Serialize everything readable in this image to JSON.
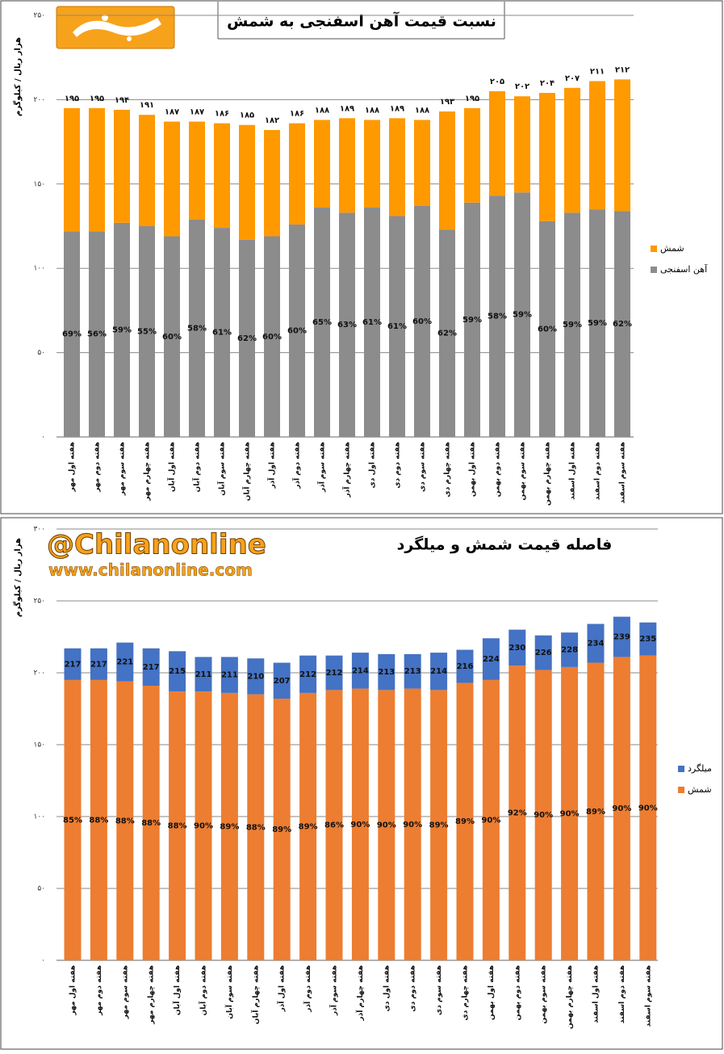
{
  "watermark": {
    "handle": "@Chilanonline",
    "url": "www.chilanonline.com"
  },
  "chart_data": [
    {
      "type": "bar",
      "stacked": true,
      "title": "نسبت قیمت آهن اسفنجی به شمش",
      "y_label": "هزار ریال / کیلوگرم",
      "categories": [
        "هفته اول مهر",
        "هفته دوم مهر",
        "هفته سوم مهر",
        "هفته چهارم مهر",
        "هفته اول آبان",
        "هفته دوم آبان",
        "هفته سوم آبان",
        "هفته چهارم آبان",
        "هفته اول آذر",
        "هفته دوم آذر",
        "هفته سوم آذر",
        "هفته چهارم آذر",
        "هفته اول دی",
        "هفته دوم دی",
        "هفته سوم دی",
        "هفته چهارم دی",
        "هفته اول بهمن",
        "هفته دوم بهمن",
        "هفته سوم بهمن",
        "هفته چهارم بهمن",
        "هفته اول اسفند",
        "هفته دوم اسفند",
        "هفته سوم اسفند"
      ],
      "series": [
        {
          "name": "آهن اسفنجی",
          "color": "#8c8c8c",
          "values": [
            122,
            122,
            127,
            125,
            119,
            129,
            124,
            117,
            119,
            126,
            136,
            133,
            136,
            131,
            137,
            123,
            139,
            143,
            145,
            128,
            133,
            135,
            134
          ]
        },
        {
          "name": "شمش",
          "color": "#ff9900",
          "values": [
            73,
            73,
            67,
            66,
            68,
            58,
            62,
            68,
            63,
            60,
            52,
            56,
            52,
            58,
            51,
            70,
            56,
            62,
            57,
            76,
            74,
            76,
            78
          ]
        }
      ],
      "totals": [
        195,
        195,
        194,
        191,
        187,
        187,
        186,
        185,
        182,
        186,
        188,
        189,
        188,
        189,
        188,
        193,
        195,
        205,
        202,
        204,
        207,
        211,
        212
      ],
      "total_labels": [
        "۱۹۵",
        "۱۹۵",
        "۱۹۴",
        "۱۹۱",
        "۱۸۷",
        "۱۸۷",
        "۱۸۶",
        "۱۸۵",
        "۱۸۲",
        "۱۸۶",
        "۱۸۸",
        "۱۸۹",
        "۱۸۸",
        "۱۸۹",
        "۱۸۸",
        "۱۹۳",
        "۱۹۵",
        "۲۰۵",
        "۲۰۲",
        "۲۰۴",
        "۲۰۷",
        "۲۱۱",
        "۲۱۲"
      ],
      "ratios": [
        69,
        56,
        59,
        55,
        60,
        58,
        61,
        62,
        60,
        60,
        65,
        63,
        61,
        61,
        60,
        62,
        59,
        58,
        59,
        60,
        59,
        59,
        62
      ],
      "ratio_labels": [
        "69%",
        "56%",
        "59%",
        "55%",
        "60%",
        "58%",
        "61%",
        "62%",
        "60%",
        "60%",
        "65%",
        "63%",
        "61%",
        "61%",
        "60%",
        "62%",
        "59%",
        "58%",
        "59%",
        "60%",
        "59%",
        "59%",
        "62%"
      ],
      "ylim": [
        0,
        250
      ],
      "yticks": [
        {
          "value": 0,
          "label": "۰"
        },
        {
          "value": 50,
          "label": "۵۰"
        },
        {
          "value": 100,
          "label": "۱۰۰"
        },
        {
          "value": 150,
          "label": "۱۵۰"
        },
        {
          "value": 200,
          "label": "۲۰۰"
        },
        {
          "value": 250,
          "label": "۲۵۰"
        }
      ],
      "grid": true,
      "legend": "right"
    },
    {
      "type": "bar",
      "stacked": true,
      "title": "فاصله  قیمت شمش و میلگرد",
      "y_label": "هزار ریال / کیلوگرم",
      "categories": [
        "هفته اول مهر",
        "هفته دوم مهر",
        "هفته سوم مهر",
        "هفته چهارم مهر",
        "هفته اول آبان",
        "هفته دوم آبان",
        "هفته سوم آبان",
        "هفته چهارم آبان",
        "هفته اول آذر",
        "هفته دوم آذر",
        "هفته سوم آذر",
        "هفته چهارم آذر",
        "هفته اول دی",
        "هفته دوم دی",
        "هفته سوم دی",
        "هفته چهارم دی",
        "هفته اول بهمن",
        "هفته دوم بهمن",
        "هفته سوم بهمن",
        "هفته چهارم بهمن",
        "هفته اول اسفند",
        "هفته دوم اسفند",
        "هفته سوم اسفند"
      ],
      "series": [
        {
          "name": "شمش",
          "color": "#ed7d31",
          "values": [
            195,
            195,
            194,
            191,
            187,
            187,
            186,
            185,
            182,
            186,
            188,
            189,
            188,
            189,
            188,
            193,
            195,
            205,
            202,
            204,
            207,
            211,
            212
          ]
        },
        {
          "name": "میلگرد",
          "color": "#4472c4",
          "values": [
            22,
            22,
            27,
            26,
            28,
            24,
            25,
            25,
            25,
            26,
            24,
            25,
            25,
            24,
            26,
            23,
            29,
            25,
            24,
            24,
            27,
            28,
            23
          ]
        }
      ],
      "totals": [
        217,
        217,
        221,
        217,
        215,
        211,
        211,
        210,
        207,
        212,
        212,
        214,
        213,
        213,
        214,
        216,
        224,
        230,
        226,
        228,
        234,
        239,
        235
      ],
      "ratios": [
        85,
        88,
        88,
        88,
        88,
        90,
        89,
        88,
        89,
        89,
        86,
        90,
        90,
        90,
        89,
        89,
        90,
        92,
        90,
        90,
        89,
        90,
        90
      ],
      "ratio_labels": [
        "85%",
        "88%",
        "88%",
        "88%",
        "88%",
        "90%",
        "89%",
        "88%",
        "89%",
        "89%",
        "86%",
        "90%",
        "90%",
        "90%",
        "89%",
        "89%",
        "90%",
        "92%",
        "90%",
        "90%",
        "89%",
        "90%",
        "90%"
      ],
      "ylim": [
        0,
        300
      ],
      "yticks": [
        {
          "value": 0,
          "label": "۰"
        },
        {
          "value": 50,
          "label": "۵۰"
        },
        {
          "value": 100,
          "label": "۱۰۰"
        },
        {
          "value": 150,
          "label": "۱۵۰"
        },
        {
          "value": 200,
          "label": "۲۰۰"
        },
        {
          "value": 250,
          "label": "۲۵۰"
        },
        {
          "value": 300,
          "label": "۳۰۰"
        }
      ],
      "grid": true,
      "legend": "right"
    }
  ]
}
